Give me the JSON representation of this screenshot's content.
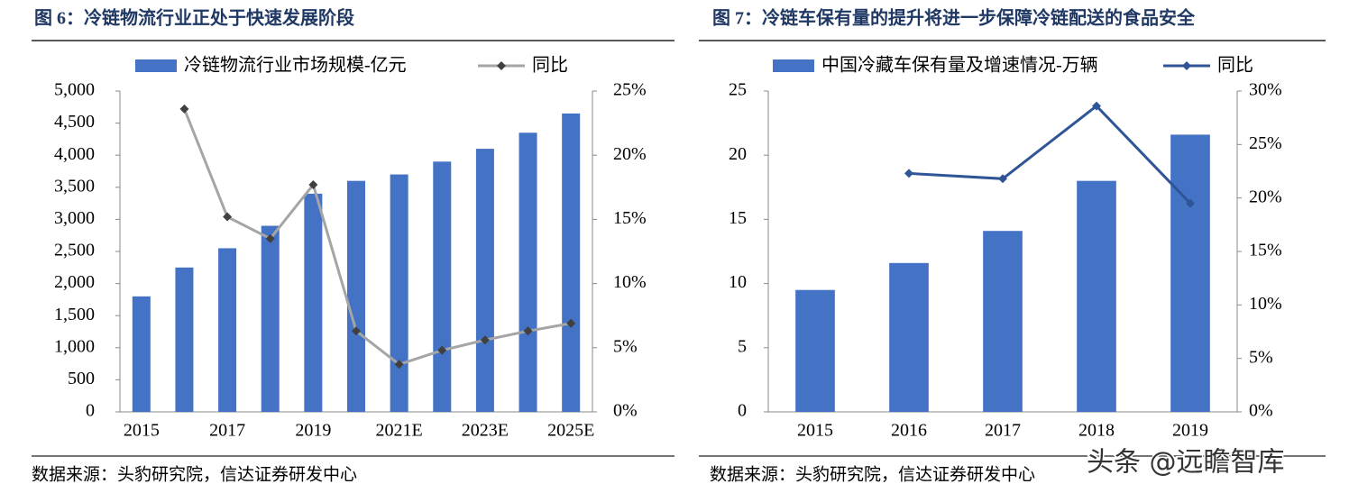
{
  "chart_data": [
    {
      "type": "bar_line",
      "title": "图 6：冷链物流行业正处于快速发展阶段",
      "categories": [
        "2015",
        null,
        "2017",
        null,
        "2019",
        null,
        "2021E",
        null,
        "2023E",
        null,
        "2025E"
      ],
      "series": [
        {
          "name": "冷链物流行业市场规模-亿元",
          "type": "bar",
          "color": "#4472c4",
          "values": [
            1800,
            2250,
            2550,
            2900,
            3400,
            3600,
            3700,
            3900,
            4100,
            4350,
            4650
          ]
        },
        {
          "name": "同比",
          "type": "line",
          "axis": "y2",
          "color": "#a5a5a5",
          "marker_color": "#404040",
          "values": [
            null,
            23.6,
            15.2,
            13.5,
            17.7,
            6.3,
            3.7,
            4.8,
            5.6,
            6.3,
            6.9
          ]
        }
      ],
      "ylim": [
        0,
        5000
      ],
      "yticks": [
        0,
        500,
        {
          "value": 1000,
          "label": "1,000"
        },
        {
          "value": 1500,
          "label": "1,500"
        },
        {
          "value": 2000,
          "label": "2,000"
        },
        {
          "value": 2500,
          "label": "2,500"
        },
        {
          "value": 3000,
          "label": "3,000"
        },
        {
          "value": 3500,
          "label": "3,500"
        },
        {
          "value": 4000,
          "label": "4,000"
        },
        {
          "value": 4500,
          "label": "4,500"
        },
        {
          "value": 5000,
          "label": "5,000"
        }
      ],
      "y2lim": [
        0,
        25
      ],
      "y2ticks": [
        {
          "value": 0,
          "label": "0%"
        },
        {
          "value": 5,
          "label": "5%"
        },
        {
          "value": 10,
          "label": "10%"
        },
        {
          "value": 15,
          "label": "15%"
        },
        {
          "value": 20,
          "label": "20%"
        },
        {
          "value": 25,
          "label": "25%"
        }
      ],
      "grid": false,
      "legend": "top",
      "source": "数据来源：头豹研究院，信达证券研发中心"
    },
    {
      "type": "bar_line",
      "title": "图 7：冷链车保有量的提升将进一步保障冷链配送的食品安全",
      "categories": [
        "2015",
        "2016",
        "2017",
        "2018",
        "2019"
      ],
      "series": [
        {
          "name": "中国冷藏车保有量及增速情况-万辆",
          "type": "bar",
          "color": "#4472c4",
          "values": [
            9.5,
            11.6,
            14.1,
            18.0,
            21.6
          ]
        },
        {
          "name": "同比",
          "type": "line",
          "axis": "y2",
          "color": "#2f5597",
          "marker_color": "#2f5597",
          "values": [
            null,
            22.3,
            21.8,
            28.6,
            19.5
          ]
        }
      ],
      "ylim": [
        0,
        25
      ],
      "yticks": [
        0,
        5,
        10,
        15,
        20,
        25
      ],
      "y2lim": [
        0,
        30
      ],
      "y2ticks": [
        {
          "value": 0,
          "label": "0%"
        },
        {
          "value": 5,
          "label": "5%"
        },
        {
          "value": 10,
          "label": "10%"
        },
        {
          "value": 15,
          "label": "15%"
        },
        {
          "value": 20,
          "label": "20%"
        },
        {
          "value": 25,
          "label": "25%"
        },
        {
          "value": 30,
          "label": "30%"
        }
      ],
      "grid": false,
      "legend": "top",
      "source": "数据来源：头豹研究院，信达证券研发中心"
    }
  ],
  "watermark": "头条 @远瞻智库"
}
